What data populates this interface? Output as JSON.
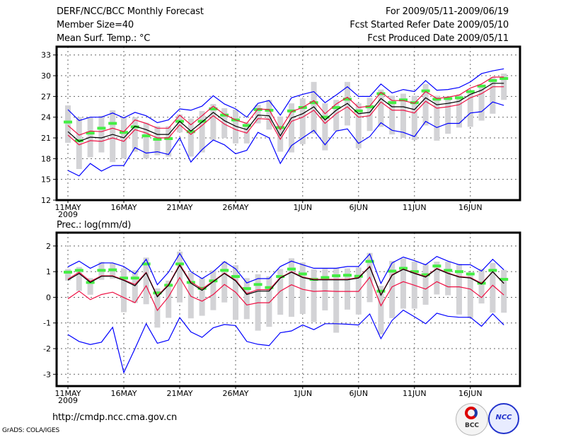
{
  "header": {
    "title": "DERF/NCC/BCC Monthly Forecast",
    "member_size": "Member Size=40",
    "variable": "Mean Surf. Temp.: °C",
    "for_range": "For 2009/05/11-2009/06/19",
    "started": "Fcst Started Refer Date 2009/05/10",
    "produced": "Fcst Produced Date 2009/05/11"
  },
  "footer": {
    "url": "http://cmdp.ncc.cma.gov.cn",
    "grads": "GrADS: COLA/IGES",
    "logo_bcc": "BCC",
    "logo_ncc": "NCC"
  },
  "colors": {
    "gray": "#d3d3d6",
    "green": "#44ee44",
    "red": "#ee1144",
    "blue": "#0000ff",
    "black": "#000000"
  },
  "chart_data": [
    {
      "type": "line",
      "title": "Mean Surf. Temp.: °C",
      "ylabel": "°C",
      "ylim": [
        12,
        34.2
      ],
      "yticks": [
        12,
        15,
        18,
        21,
        24,
        27,
        30,
        33
      ],
      "xticks": [
        {
          "day": 1,
          "label": "11MAY",
          "sub": "2009"
        },
        {
          "day": 6,
          "label": "16MAY"
        },
        {
          "day": 11,
          "label": "21MAY"
        },
        {
          "day": 16,
          "label": "26MAY"
        },
        {
          "day": 22,
          "label": "1JUN"
        },
        {
          "day": 27,
          "label": "6JUN"
        },
        {
          "day": 32,
          "label": "11JUN"
        },
        {
          "day": 37,
          "label": "16JUN"
        }
      ],
      "grid": true,
      "days": 40,
      "series": [
        {
          "name": "ensemble-max",
          "color": "blue",
          "values": [
            25.1,
            23.5,
            24.0,
            24.0,
            24.6,
            23.9,
            24.7,
            24.2,
            23.2,
            23.6,
            25.2,
            25.0,
            25.6,
            27.1,
            25.9,
            25.2,
            24.0,
            26.0,
            26.4,
            24.3,
            26.8,
            27.3,
            27.7,
            26.1,
            27.2,
            28.4,
            27.0,
            27.0,
            28.8,
            27.5,
            28.0,
            27.7,
            29.3,
            27.9,
            28.0,
            28.3,
            29.1,
            30.3,
            30.7,
            31.0
          ]
        },
        {
          "name": "ensemble-min",
          "color": "blue",
          "values": [
            16.3,
            15.5,
            17.3,
            16.2,
            17.0,
            17.0,
            19.6,
            18.8,
            19.0,
            18.6,
            21.0,
            17.5,
            19.3,
            20.7,
            20.0,
            18.7,
            19.2,
            21.8,
            21.0,
            17.3,
            19.9,
            21.0,
            22.1,
            20.0,
            22.0,
            22.3,
            20.2,
            21.2,
            23.2,
            22.1,
            21.8,
            21.2,
            23.4,
            22.5,
            23.1,
            23.1,
            24.6,
            24.8,
            26.2,
            25.7
          ]
        },
        {
          "name": "upper-spread",
          "color": "red",
          "values": [
            22.8,
            21.4,
            22.0,
            21.9,
            22.4,
            21.9,
            23.6,
            23.1,
            22.4,
            22.4,
            24.3,
            22.9,
            24.2,
            25.6,
            24.4,
            23.6,
            23.1,
            25.2,
            25.1,
            22.2,
            24.8,
            25.4,
            26.4,
            24.5,
            25.9,
            26.9,
            25.4,
            25.6,
            27.6,
            26.4,
            26.4,
            26.0,
            27.7,
            26.7,
            26.9,
            27.2,
            28.2,
            28.8,
            29.8,
            29.8
          ]
        },
        {
          "name": "lower-spread",
          "color": "red",
          "values": [
            21.4,
            20.0,
            20.6,
            20.5,
            21.0,
            20.5,
            22.2,
            21.7,
            21.0,
            21.0,
            22.9,
            21.5,
            22.8,
            24.2,
            23.0,
            22.2,
            21.7,
            23.8,
            23.7,
            20.8,
            23.4,
            24.0,
            25.0,
            23.1,
            24.5,
            25.5,
            24.0,
            24.2,
            26.2,
            25.0,
            25.0,
            24.6,
            26.3,
            25.3,
            25.5,
            25.8,
            26.8,
            27.4,
            28.4,
            28.4
          ]
        },
        {
          "name": "ensemble-mean",
          "color": "black",
          "values": [
            21.9,
            20.5,
            21.1,
            21.0,
            21.5,
            21.0,
            22.7,
            22.2,
            21.5,
            21.5,
            23.4,
            22.0,
            23.3,
            24.7,
            23.5,
            22.7,
            22.2,
            24.3,
            24.2,
            21.3,
            23.9,
            24.5,
            25.5,
            23.6,
            25.0,
            26.0,
            24.5,
            24.7,
            26.7,
            25.5,
            25.5,
            25.1,
            26.8,
            25.8,
            26.0,
            26.3,
            27.3,
            27.9,
            28.9,
            28.9
          ]
        }
      ],
      "markers": {
        "name": "green-marker",
        "values": [
          23.3,
          20.6,
          21.7,
          22.4,
          23.1,
          21.8,
          22.6,
          21.3,
          20.8,
          20.9,
          23.4,
          21.9,
          23.4,
          25.2,
          24.3,
          23.6,
          22.8,
          25.1,
          25.0,
          22.5,
          24.9,
          25.4,
          26.1,
          24.0,
          25.4,
          26.6,
          24.9,
          25.5,
          27.4,
          26.1,
          26.5,
          26.1,
          27.8,
          26.6,
          26.7,
          26.8,
          27.7,
          28.5,
          29.3,
          29.6
        ]
      },
      "boxes": {
        "low": [
          20.3,
          16.5,
          18.2,
          18.9,
          17.5,
          18.0,
          19.0,
          18.0,
          18.5,
          18.3,
          21.8,
          18.3,
          18.9,
          20.7,
          21.0,
          20.2,
          20.2,
          23.1,
          22.2,
          19.0,
          18.9,
          20.1,
          21.6,
          19.2,
          22.0,
          22.8,
          19.5,
          22.0,
          22.6,
          21.5,
          21.0,
          20.7,
          22.8,
          20.6,
          21.6,
          22.5,
          22.6,
          23.5,
          24.5,
          26.5
        ],
        "high": [
          25.7,
          24.0,
          24.0,
          24.2,
          25.0,
          24.0,
          24.0,
          23.2,
          22.7,
          22.7,
          24.4,
          23.8,
          24.9,
          25.9,
          25.3,
          25.1,
          23.2,
          25.8,
          26.5,
          24.1,
          26.0,
          26.7,
          29.1,
          26.0,
          26.5,
          29.1,
          26.0,
          26.8,
          28.0,
          27.1,
          27.4,
          27.1,
          28.8,
          27.1,
          27.0,
          27.3,
          27.8,
          28.5,
          29.8,
          30.3
        ]
      }
    },
    {
      "type": "line",
      "title": "Prec.: log(mm/d)",
      "ylabel": "log(mm/d)",
      "ylim": [
        -3.46,
        2.52
      ],
      "yticks": [
        -3,
        -2,
        -1,
        0,
        1,
        2
      ],
      "xticks": [
        {
          "day": 1,
          "label": "11MAY",
          "sub": "2009"
        },
        {
          "day": 6,
          "label": "16MAY"
        },
        {
          "day": 11,
          "label": "21MAY"
        },
        {
          "day": 16,
          "label": "26MAY"
        },
        {
          "day": 22,
          "label": "1JUN"
        },
        {
          "day": 27,
          "label": "6JUN"
        },
        {
          "day": 32,
          "label": "11JUN"
        },
        {
          "day": 37,
          "label": "16JUN"
        }
      ],
      "grid": true,
      "days": 40,
      "series": [
        {
          "name": "ensemble-max",
          "color": "blue",
          "values": [
            1.19,
            1.41,
            1.13,
            1.34,
            1.34,
            1.2,
            0.91,
            1.48,
            0.49,
            0.98,
            1.71,
            1.0,
            0.73,
            1.0,
            1.39,
            1.11,
            0.56,
            0.73,
            0.73,
            1.2,
            1.41,
            1.27,
            1.13,
            1.13,
            1.13,
            1.2,
            1.2,
            1.69,
            0.54,
            1.34,
            1.57,
            1.43,
            1.27,
            1.59,
            1.41,
            1.27,
            1.27,
            1.02,
            1.48,
            1.07
          ]
        },
        {
          "name": "ensemble-min",
          "color": "blue",
          "values": [
            -1.45,
            -1.72,
            -1.84,
            -1.75,
            -1.17,
            -2.93,
            -2.0,
            -1.03,
            -1.79,
            -1.67,
            -0.79,
            -1.35,
            -1.56,
            -1.19,
            -1.06,
            -1.1,
            -1.72,
            -1.83,
            -1.88,
            -1.38,
            -1.31,
            -1.08,
            -1.26,
            -1.03,
            -1.03,
            -1.05,
            -1.08,
            -0.65,
            -1.61,
            -0.9,
            -0.5,
            -0.76,
            -1.03,
            -0.62,
            -0.74,
            -0.78,
            -0.78,
            -1.13,
            -0.64,
            -1.08
          ]
        },
        {
          "name": "upper-spread",
          "color": "red",
          "values": [
            0.71,
            0.98,
            0.62,
            0.84,
            0.84,
            0.68,
            0.5,
            0.97,
            0.05,
            0.5,
            1.28,
            0.6,
            0.33,
            0.63,
            0.95,
            0.67,
            0.15,
            0.3,
            0.3,
            0.77,
            1.0,
            0.79,
            0.7,
            0.7,
            0.7,
            0.7,
            0.77,
            1.21,
            0.1,
            0.88,
            1.1,
            0.95,
            0.81,
            1.13,
            0.95,
            0.81,
            0.77,
            0.55,
            1.0,
            0.54
          ]
        },
        {
          "name": "lower-spread",
          "color": "red",
          "values": [
            -0.06,
            0.24,
            -0.09,
            0.11,
            0.2,
            -0.01,
            -0.21,
            0.45,
            -0.51,
            0.02,
            0.77,
            0.04,
            -0.15,
            0.11,
            0.5,
            0.2,
            -0.3,
            -0.21,
            -0.21,
            0.24,
            0.49,
            0.31,
            0.23,
            0.25,
            0.23,
            0.23,
            0.23,
            0.78,
            -0.33,
            0.41,
            0.61,
            0.47,
            0.32,
            0.61,
            0.41,
            0.41,
            0.32,
            -0.01,
            0.47,
            0.09
          ]
        },
        {
          "name": "ensemble-mean",
          "color": "black",
          "values": [
            0.67,
            0.93,
            0.58,
            0.82,
            0.82,
            0.66,
            0.45,
            0.95,
            0.02,
            0.47,
            1.25,
            0.55,
            0.27,
            0.61,
            0.93,
            0.64,
            0.11,
            0.24,
            0.24,
            0.75,
            0.98,
            0.77,
            0.68,
            0.68,
            0.68,
            0.68,
            0.75,
            1.19,
            0.08,
            0.86,
            1.09,
            0.93,
            0.79,
            1.11,
            0.93,
            0.79,
            0.75,
            0.52,
            1.0,
            0.54
          ]
        }
      ],
      "markers": {
        "name": "green-marker",
        "values": [
          0.98,
          1.05,
          0.58,
          1.05,
          1.07,
          0.75,
          0.75,
          1.3,
          0.17,
          0.47,
          1.3,
          0.58,
          0.35,
          0.64,
          1.05,
          0.81,
          0.34,
          0.5,
          0.38,
          0.81,
          1.1,
          0.91,
          0.7,
          0.77,
          0.84,
          0.86,
          0.82,
          1.4,
          0.24,
          1.02,
          1.13,
          1.0,
          0.88,
          1.22,
          1.05,
          1.0,
          0.91,
          0.55,
          1.05,
          0.7
        ]
      },
      "boxes": {
        "low": [
          0.65,
          0.25,
          0.1,
          0.68,
          0.72,
          -0.58,
          -0.22,
          -0.27,
          -1.18,
          -0.8,
          -0.2,
          -0.82,
          -0.72,
          -0.5,
          -0.2,
          -0.88,
          -0.85,
          -1.3,
          -1.15,
          -0.68,
          -0.76,
          -0.65,
          -0.97,
          -0.51,
          -1.38,
          -0.48,
          -0.67,
          -0.19,
          -1.45,
          -0.81,
          -0.44,
          -0.44,
          -0.29,
          0.11,
          0.08,
          -0.67,
          -0.81,
          -0.24,
          -0.6,
          -0.6
        ],
        "high": [
          1.1,
          1.18,
          0.75,
          1.38,
          1.33,
          1.13,
          1.05,
          1.55,
          0.35,
          0.65,
          1.78,
          0.95,
          0.75,
          1.05,
          1.4,
          1.25,
          0.75,
          0.9,
          0.82,
          1.1,
          1.52,
          1.36,
          1.09,
          1.13,
          1.13,
          1.13,
          1.16,
          1.73,
          0.45,
          1.42,
          1.52,
          1.39,
          1.3,
          1.39,
          1.39,
          1.3,
          0.93,
          1.11,
          1.34,
          1.07
        ]
      }
    }
  ]
}
